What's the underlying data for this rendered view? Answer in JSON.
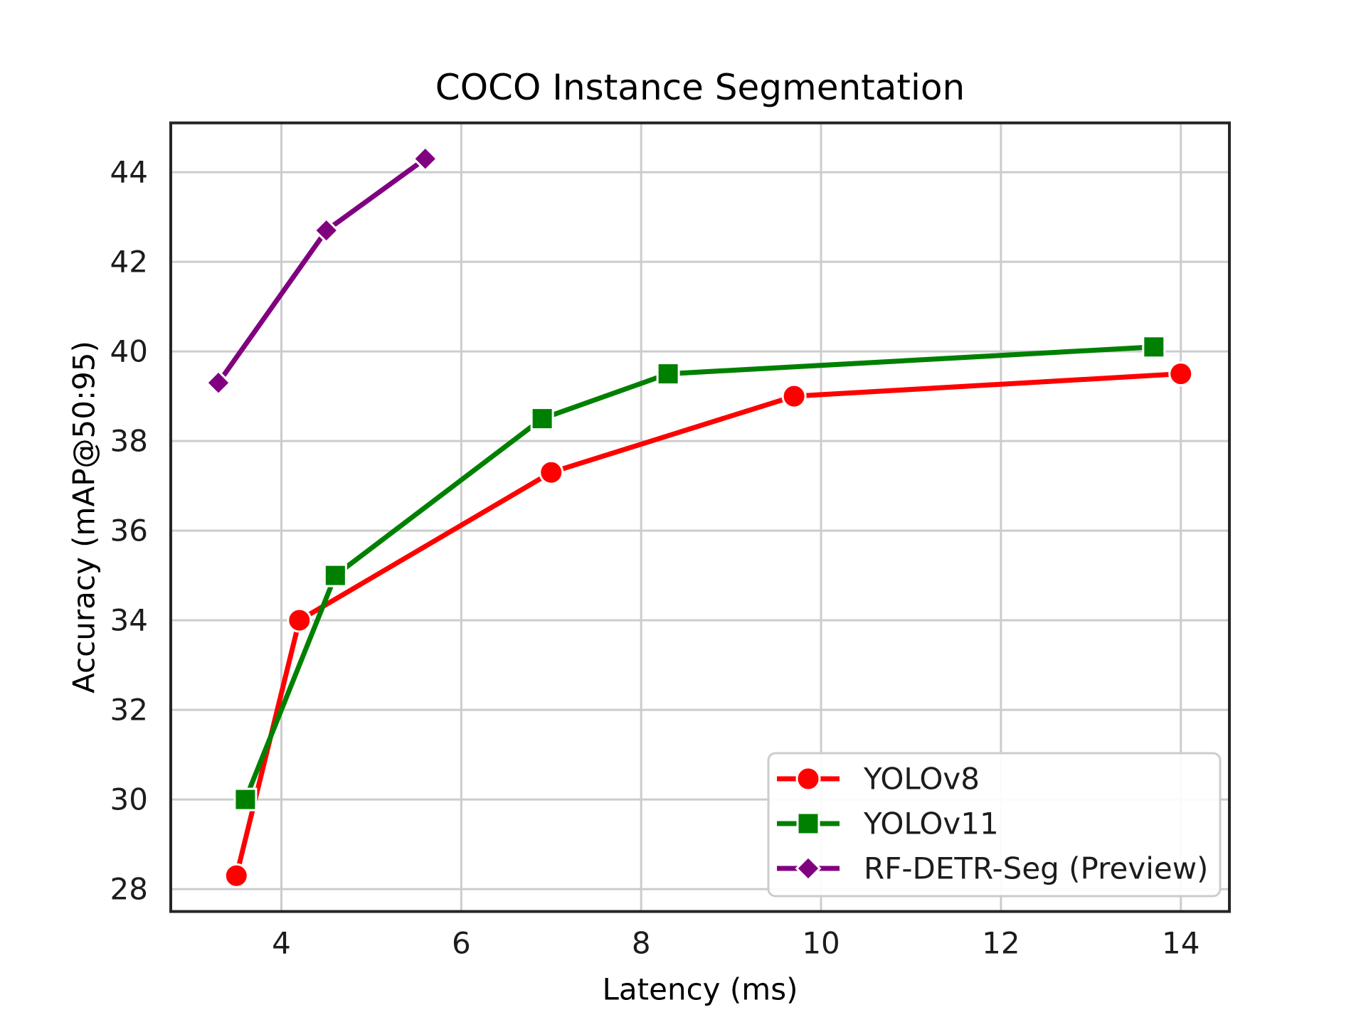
{
  "figure": {
    "background": "#ffffff"
  },
  "chart_data": {
    "type": "line",
    "title": "COCO Instance Segmentation",
    "xlabel": "Latency (ms)",
    "ylabel": "Accuracy (mAP@50:95)",
    "xlim": [
      2.77,
      14.54
    ],
    "ylim": [
      27.5,
      45.1
    ],
    "xticks": [
      4,
      6,
      8,
      10,
      12,
      14
    ],
    "yticks": [
      28,
      30,
      32,
      34,
      36,
      38,
      40,
      42,
      44
    ],
    "grid": true,
    "legend": {
      "position": "lower right",
      "entries": [
        "YOLOv8",
        "YOLOv11",
        "RF-DETR-Seg (Preview)"
      ]
    },
    "series": [
      {
        "name": "YOLOv8",
        "color": "#ff0000",
        "marker": "circle",
        "points": [
          {
            "x": 3.5,
            "y": 28.3
          },
          {
            "x": 4.2,
            "y": 34.0
          },
          {
            "x": 7.0,
            "y": 37.3
          },
          {
            "x": 9.7,
            "y": 39.0
          },
          {
            "x": 14.0,
            "y": 39.5
          }
        ]
      },
      {
        "name": "YOLOv11",
        "color": "#008000",
        "marker": "square",
        "points": [
          {
            "x": 3.6,
            "y": 30.0
          },
          {
            "x": 4.6,
            "y": 35.0
          },
          {
            "x": 6.9,
            "y": 38.5
          },
          {
            "x": 8.3,
            "y": 39.5
          },
          {
            "x": 13.7,
            "y": 40.1
          }
        ]
      },
      {
        "name": "RF-DETR-Seg (Preview)",
        "color": "#800080",
        "marker": "diamond",
        "points": [
          {
            "x": 3.3,
            "y": 39.3
          },
          {
            "x": 4.5,
            "y": 42.7
          },
          {
            "x": 5.6,
            "y": 44.3
          }
        ]
      }
    ],
    "style": {
      "grid_color": "#cccccc",
      "spine_color": "#262626",
      "text_color": "#1c1c1c",
      "legend_border_color": "#cccccc",
      "legend_background": "#ffffff"
    }
  }
}
